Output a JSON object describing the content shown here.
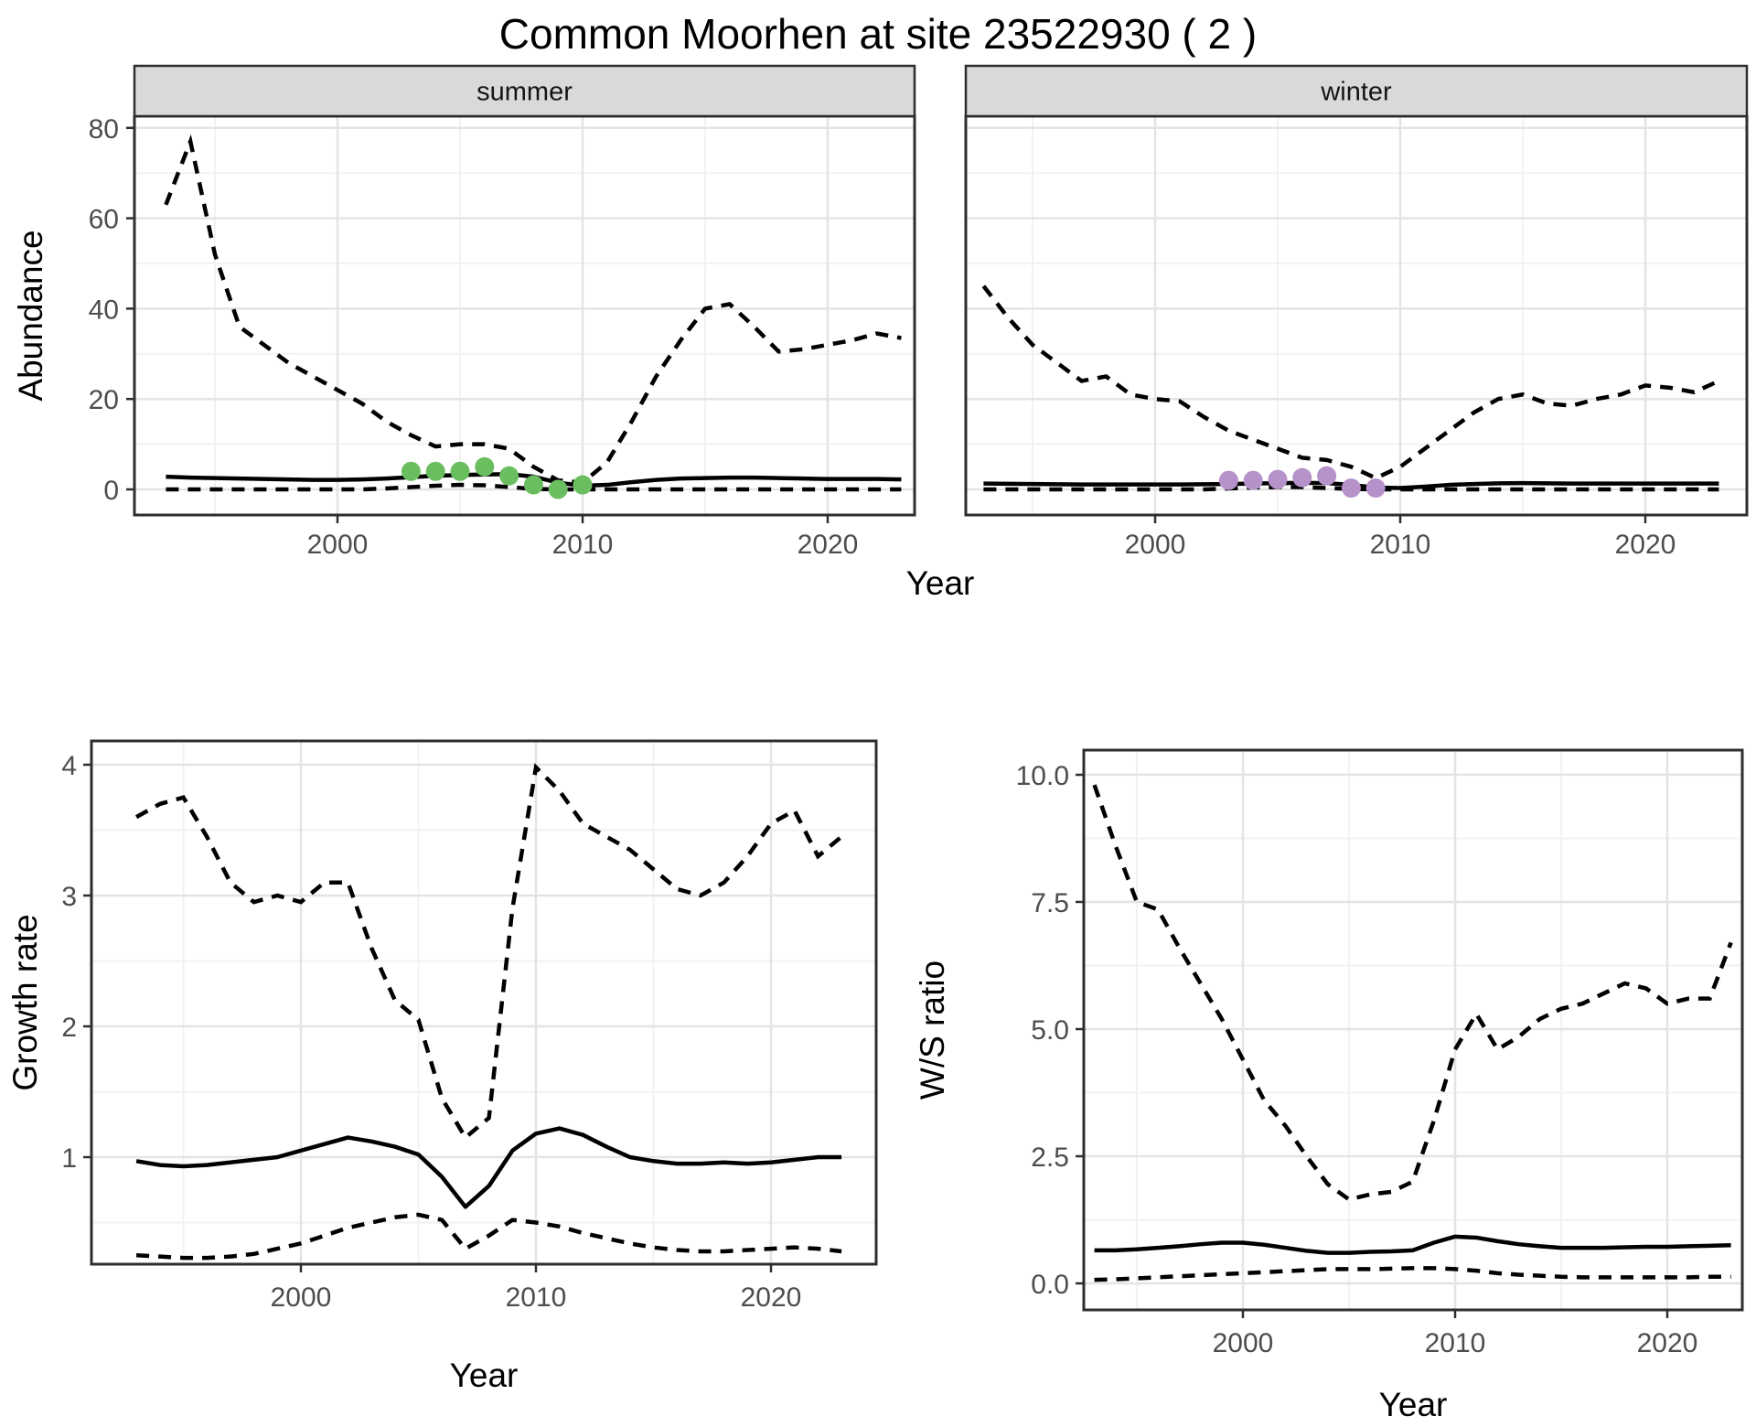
{
  "title": "Common Moorhen at site 23522930 ( 2 )",
  "axes": {
    "x_label": "Year",
    "abundance_label": "Abundance",
    "growth_label": "Growth rate",
    "ws_label": "W/S ratio"
  },
  "colors": {
    "summer_points": "#6BBE5F",
    "winter_points": "#B592C9",
    "line": "#000000",
    "strip_bg": "#D9D9D9",
    "grid_major": "#E4E4E4",
    "grid_minor": "#F2F2F2"
  },
  "facets": {
    "summer": "summer",
    "winter": "winter"
  },
  "chart_data": [
    {
      "type": "line",
      "name": "summer_abundance",
      "facet_label": "summer",
      "xlabel": "Year",
      "ylabel": "Abundance",
      "x": [
        1993,
        1994,
        1995,
        1996,
        1997,
        1998,
        1999,
        2000,
        2001,
        2002,
        2003,
        2004,
        2005,
        2006,
        2007,
        2008,
        2009,
        2010,
        2011,
        2012,
        2013,
        2014,
        2015,
        2016,
        2017,
        2018,
        2019,
        2020,
        2021,
        2022,
        2023
      ],
      "series": [
        {
          "name": "upper_95ci",
          "style": "dashed",
          "values": [
            63,
            77,
            52,
            36,
            32,
            28,
            25,
            22,
            19,
            15,
            12,
            9.5,
            10,
            10,
            9,
            5,
            2,
            1.5,
            6,
            15,
            25,
            33,
            40,
            41,
            36,
            30.5,
            31,
            32,
            33,
            34.5,
            33.5
          ]
        },
        {
          "name": "median",
          "style": "solid",
          "values": [
            2.8,
            2.6,
            2.5,
            2.4,
            2.3,
            2.2,
            2.1,
            2.1,
            2.2,
            2.4,
            2.7,
            3.0,
            3.2,
            3.3,
            3.4,
            2.8,
            1.5,
            0.8,
            1.0,
            1.6,
            2.1,
            2.4,
            2.5,
            2.6,
            2.6,
            2.5,
            2.4,
            2.3,
            2.3,
            2.3,
            2.2
          ]
        },
        {
          "name": "lower_95ci",
          "style": "dashed",
          "values": [
            0,
            0,
            0,
            0,
            0,
            0,
            0,
            0,
            0,
            0.2,
            0.5,
            0.8,
            1.0,
            0.9,
            0.5,
            0.1,
            0,
            0,
            0,
            0,
            0,
            0,
            0,
            0,
            0,
            0,
            0,
            0,
            0,
            0,
            0
          ]
        },
        {
          "name": "observed_counts",
          "style": "points",
          "color": "#6BBE5F",
          "x": [
            2003,
            2004,
            2005,
            2006,
            2007,
            2008,
            2009,
            2010
          ],
          "values": [
            4,
            4,
            4,
            5,
            3,
            1,
            0,
            1
          ]
        }
      ],
      "xticks": [
        2000,
        2010,
        2020
      ],
      "xticks_minor": [
        1995,
        2005,
        2015
      ],
      "yticks": [
        0,
        20,
        40,
        60,
        80
      ],
      "ytick_labels": [
        "0",
        "20",
        "40",
        "60",
        "80"
      ],
      "yticks_minor": [
        10,
        30,
        50,
        70
      ],
      "ylim": [
        -5.7,
        82.5
      ],
      "xlim": [
        1992,
        2024
      ]
    },
    {
      "type": "line",
      "name": "winter_abundance",
      "facet_label": "winter",
      "xlabel": "Year",
      "ylabel": "Abundance",
      "x": [
        1993,
        1994,
        1995,
        1996,
        1997,
        1998,
        1999,
        2000,
        2001,
        2002,
        2003,
        2004,
        2005,
        2006,
        2007,
        2008,
        2009,
        2010,
        2011,
        2012,
        2013,
        2014,
        2015,
        2016,
        2017,
        2018,
        2019,
        2020,
        2021,
        2022,
        2023
      ],
      "series": [
        {
          "name": "upper_95ci",
          "style": "dashed",
          "values": [
            45,
            38,
            32,
            28,
            24,
            25,
            21,
            20,
            19.5,
            16,
            13,
            11,
            9,
            7,
            6.5,
            5,
            2.5,
            5,
            9,
            13,
            17,
            20,
            21,
            19,
            18.5,
            20,
            21,
            23,
            22.5,
            21.5,
            24
          ]
        },
        {
          "name": "median",
          "style": "solid",
          "values": [
            1.3,
            1.25,
            1.2,
            1.15,
            1.1,
            1.1,
            1.1,
            1.1,
            1.1,
            1.15,
            1.2,
            1.3,
            1.4,
            1.45,
            1.4,
            1.0,
            0.4,
            0.3,
            0.6,
            1.0,
            1.2,
            1.35,
            1.4,
            1.35,
            1.3,
            1.3,
            1.3,
            1.3,
            1.3,
            1.3,
            1.3
          ]
        },
        {
          "name": "lower_95ci",
          "style": "dashed",
          "values": [
            0,
            0,
            0,
            0,
            0,
            0,
            0,
            0,
            0,
            0,
            0.2,
            0.4,
            0.5,
            0.5,
            0.3,
            0.1,
            0,
            0,
            0,
            0,
            0,
            0,
            0,
            0,
            0,
            0,
            0,
            0,
            0,
            0,
            0
          ]
        },
        {
          "name": "observed_counts",
          "style": "points",
          "color": "#B592C9",
          "x": [
            2003,
            2004,
            2005,
            2006,
            2007,
            2008,
            2009
          ],
          "values": [
            2,
            2,
            2.2,
            2.6,
            3,
            0.3,
            0.3
          ]
        }
      ],
      "xticks": [
        2000,
        2010,
        2020
      ],
      "xticks_minor": [
        1995,
        2005,
        2015
      ],
      "yticks": [
        0,
        20,
        40,
        60,
        80
      ],
      "ytick_labels": [
        "0",
        "20",
        "40",
        "60",
        "80"
      ],
      "yticks_minor": [
        10,
        30,
        50,
        70
      ],
      "ylim": [
        -5.7,
        82.5
      ],
      "xlim": [
        1992,
        2024
      ]
    },
    {
      "type": "line",
      "name": "growth_rate",
      "xlabel": "Year",
      "ylabel": "Growth rate",
      "x": [
        1993,
        1994,
        1995,
        1996,
        1997,
        1998,
        1999,
        2000,
        2001,
        2002,
        2003,
        2004,
        2005,
        2006,
        2007,
        2008,
        2009,
        2010,
        2011,
        2012,
        2013,
        2014,
        2015,
        2016,
        2017,
        2018,
        2019,
        2020,
        2021,
        2022,
        2023
      ],
      "series": [
        {
          "name": "upper_95ci",
          "style": "dashed",
          "values": [
            3.6,
            3.7,
            3.75,
            3.45,
            3.1,
            2.95,
            3.0,
            2.95,
            3.1,
            3.1,
            2.6,
            2.2,
            2.05,
            1.45,
            1.15,
            1.3,
            2.9,
            3.98,
            3.8,
            3.55,
            3.45,
            3.35,
            3.2,
            3.05,
            3.0,
            3.1,
            3.3,
            3.55,
            3.65,
            3.3,
            3.45
          ]
        },
        {
          "name": "median",
          "style": "solid",
          "values": [
            0.97,
            0.94,
            0.93,
            0.94,
            0.96,
            0.98,
            1.0,
            1.05,
            1.1,
            1.15,
            1.12,
            1.08,
            1.02,
            0.85,
            0.62,
            0.78,
            1.05,
            1.18,
            1.22,
            1.17,
            1.08,
            1.0,
            0.97,
            0.95,
            0.95,
            0.96,
            0.95,
            0.96,
            0.98,
            1.0,
            1.0
          ]
        },
        {
          "name": "lower_95ci",
          "style": "dashed",
          "values": [
            0.25,
            0.24,
            0.23,
            0.23,
            0.24,
            0.26,
            0.3,
            0.34,
            0.4,
            0.46,
            0.5,
            0.54,
            0.56,
            0.52,
            0.3,
            0.4,
            0.52,
            0.5,
            0.47,
            0.42,
            0.38,
            0.34,
            0.31,
            0.29,
            0.28,
            0.28,
            0.29,
            0.3,
            0.31,
            0.3,
            0.28
          ]
        }
      ],
      "xticks": [
        2000,
        2010,
        2020
      ],
      "xticks_minor": [
        1995,
        2005,
        2015
      ],
      "yticks": [
        1,
        2,
        3,
        4
      ],
      "ytick_labels": [
        "1",
        "2",
        "3",
        "4"
      ],
      "yticks_minor": [
        0.5,
        1.5,
        2.5,
        3.5
      ],
      "ylim": [
        0.18,
        4.18
      ],
      "xlim": [
        1992,
        2024
      ]
    },
    {
      "type": "line",
      "name": "ws_ratio",
      "xlabel": "Year",
      "ylabel": "W/S ratio",
      "x": [
        1993,
        1994,
        1995,
        1996,
        1997,
        1998,
        1999,
        2000,
        2001,
        2002,
        2003,
        2004,
        2005,
        2006,
        2007,
        2008,
        2009,
        2010,
        2011,
        2012,
        2013,
        2014,
        2015,
        2016,
        2017,
        2018,
        2019,
        2020,
        2021,
        2022,
        2023
      ],
      "series": [
        {
          "name": "upper_95ci",
          "style": "dashed",
          "values": [
            9.8,
            8.6,
            7.5,
            7.35,
            6.6,
            5.9,
            5.2,
            4.4,
            3.6,
            3.1,
            2.5,
            1.95,
            1.65,
            1.75,
            1.8,
            2.0,
            3.2,
            4.6,
            5.3,
            4.6,
            4.85,
            5.2,
            5.4,
            5.5,
            5.7,
            5.9,
            5.8,
            5.5,
            5.6,
            5.6,
            6.7
          ]
        },
        {
          "name": "median",
          "style": "solid",
          "values": [
            0.65,
            0.65,
            0.67,
            0.7,
            0.73,
            0.77,
            0.8,
            0.8,
            0.76,
            0.7,
            0.64,
            0.6,
            0.6,
            0.62,
            0.63,
            0.65,
            0.8,
            0.92,
            0.9,
            0.83,
            0.77,
            0.73,
            0.7,
            0.7,
            0.7,
            0.71,
            0.72,
            0.72,
            0.73,
            0.74,
            0.75
          ]
        },
        {
          "name": "lower_95ci",
          "style": "dashed",
          "values": [
            0.07,
            0.08,
            0.1,
            0.12,
            0.14,
            0.16,
            0.18,
            0.2,
            0.22,
            0.24,
            0.26,
            0.28,
            0.28,
            0.28,
            0.29,
            0.3,
            0.3,
            0.28,
            0.25,
            0.2,
            0.17,
            0.15,
            0.13,
            0.12,
            0.12,
            0.12,
            0.12,
            0.12,
            0.12,
            0.13,
            0.13
          ]
        }
      ],
      "xticks": [
        2000,
        2010,
        2020
      ],
      "xticks_minor": [
        1995,
        2005,
        2015
      ],
      "yticks": [
        0,
        2.5,
        5,
        7.5,
        10
      ],
      "ytick_labels": [
        "0.0",
        "2.5",
        "5.0",
        "7.5",
        "10.0"
      ],
      "yticks_minor": [
        1.25,
        3.75,
        6.25,
        8.75
      ],
      "ylim": [
        -0.5,
        10.5
      ],
      "xlim": [
        1992,
        2024
      ]
    }
  ]
}
